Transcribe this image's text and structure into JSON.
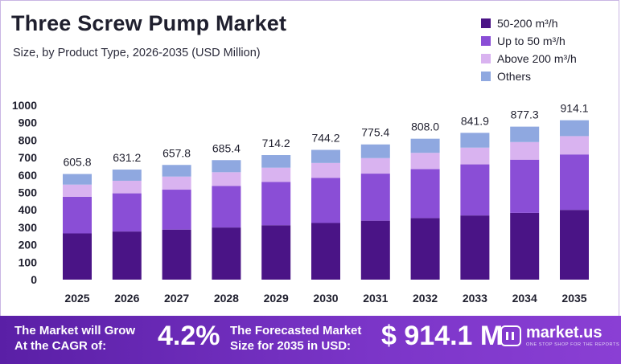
{
  "colors": {
    "s1": "#4a1486",
    "s2": "#8a4ed6",
    "s3": "#d9b3f0",
    "s4": "#8fa8e0",
    "footer": "#6a2bb8"
  },
  "footer": {
    "cagr_label_line1": "The Market will Grow",
    "cagr_label_line2": "At the CAGR of:",
    "cagr_value": "4.2%",
    "forecast_label_line1": "The Forecasted Market",
    "forecast_label_line2": "Size for 2035 in USD:",
    "forecast_value": "$ 914.1 M",
    "brand_name": "market.us",
    "brand_tagline": "ONE STOP SHOP FOR THE REPORTS"
  },
  "chart_data": {
    "type": "bar",
    "stacked": true,
    "title": "Three Screw Pump Market",
    "subtitle": "Size, by Product Type, 2026-2035 (USD Million)",
    "categories": [
      "2025",
      "2026",
      "2027",
      "2028",
      "2029",
      "2030",
      "2031",
      "2032",
      "2033",
      "2034",
      "2035"
    ],
    "series": [
      {
        "name": "50-200 m³/h",
        "values": [
          265,
          276,
          287,
          299,
          312,
          325,
          338,
          353,
          368,
          383,
          400
        ]
      },
      {
        "name": "Up to 50 m³/h",
        "values": [
          210,
          219,
          229,
          238,
          248,
          259,
          270,
          281,
          293,
          305,
          318
        ]
      },
      {
        "name": "Above 200 m³/h",
        "values": [
          70,
          72,
          75,
          79,
          82,
          85,
          89,
          93,
          96,
          101,
          105
        ]
      },
      {
        "name": "Others",
        "values": [
          60.8,
          64.2,
          66.8,
          69.4,
          72.2,
          75.2,
          78.4,
          81.0,
          84.9,
          88.3,
          91.1
        ]
      }
    ],
    "totals": [
      "605.8",
      "631.2",
      "657.8",
      "685.4",
      "714.2",
      "744.2",
      "775.4",
      "808.0",
      "841.9",
      "877.3",
      "914.1"
    ],
    "yticks": [
      0,
      100,
      200,
      300,
      400,
      500,
      600,
      700,
      800,
      900,
      1000
    ],
    "ylim": [
      0,
      1000
    ],
    "legend_position": "top-right",
    "grid": false
  }
}
